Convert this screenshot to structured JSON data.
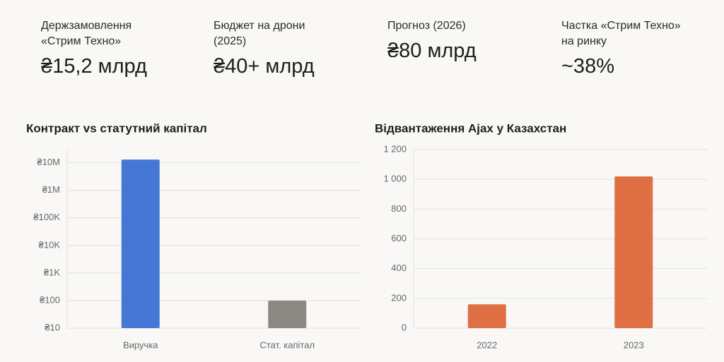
{
  "stats": [
    {
      "label": "Держзамовлення «Стрим Техно»",
      "value": "₴15,2 млрд"
    },
    {
      "label": "Бюджет на дрони (2025)",
      "value": "₴40+ млрд"
    },
    {
      "label": "Прогноз (2026)",
      "value": "₴80 млрд"
    },
    {
      "label": "Частка «Стрим Техно» на ринку",
      "value": "~38%"
    }
  ],
  "chart_data": [
    {
      "type": "bar",
      "title": "Контракт vs статутний капітал",
      "scale": "log",
      "categories": [
        "Виручка",
        "Стат. капітал"
      ],
      "values": [
        13000000,
        100
      ],
      "colors": [
        "#4677d6",
        "#8a8984"
      ],
      "ylim": [
        10,
        30000000
      ],
      "yticks": [
        {
          "value": 10,
          "label": "₴10"
        },
        {
          "value": 100,
          "label": "₴100"
        },
        {
          "value": 1000,
          "label": "₴1K"
        },
        {
          "value": 10000,
          "label": "₴10K"
        },
        {
          "value": 100000,
          "label": "₴100K"
        },
        {
          "value": 1000000,
          "label": "₴1M"
        },
        {
          "value": 10000000,
          "label": "₴10M"
        }
      ],
      "grid": true
    },
    {
      "type": "bar",
      "title": "Відвантаження Ajax у Казахстан",
      "categories": [
        "2022",
        "2023"
      ],
      "values": [
        160,
        1020
      ],
      "colors": [
        "#e07044",
        "#e07044"
      ],
      "ylim": [
        0,
        1200
      ],
      "yticks": [
        0,
        200,
        400,
        600,
        800,
        {
          "value": 1000,
          "label": "1 000"
        },
        {
          "value": 1200,
          "label": "1 200"
        }
      ],
      "grid": true
    }
  ]
}
